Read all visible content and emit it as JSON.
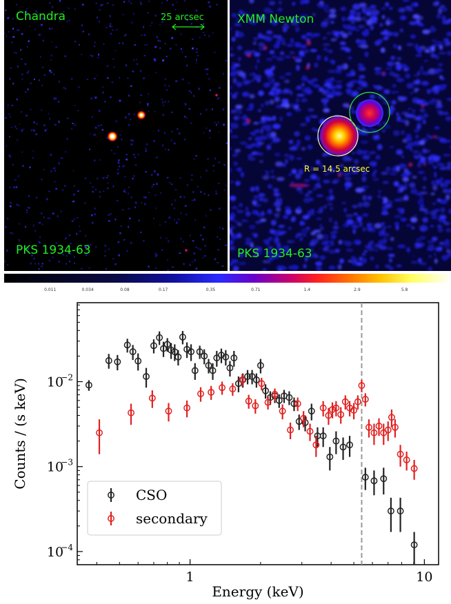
{
  "images": {
    "left": {
      "title": "Chandra",
      "source": "PKS 1934-63",
      "scale_label": "25 arcsec"
    },
    "right": {
      "title": "XMM Newton",
      "source": "PKS 1934-63",
      "radius_label": "R = 14.5 arcsec"
    },
    "colorbar_ticks": [
      "0.011",
      "0.034",
      "0.08",
      "0.17",
      "0.35",
      "0.71",
      "1.4",
      "2.9",
      "5.8"
    ],
    "colorbar_positions": [
      0.103,
      0.187,
      0.27,
      0.356,
      0.462,
      0.563,
      0.678,
      0.79,
      0.896
    ]
  },
  "chart_data": {
    "type": "scatter",
    "xlabel": "Energy (keV)",
    "ylabel": "Counts / (s keV)",
    "x_scale": "log",
    "y_scale": "log",
    "xlim": [
      0.33,
      11.5
    ],
    "ylim": [
      7e-05,
      0.085
    ],
    "x_ticks": [
      {
        "value": 1,
        "label": "1"
      },
      {
        "value": 10,
        "label": "10"
      }
    ],
    "y_ticks": [
      {
        "value": 0.0001,
        "label": "10",
        "exp": "−4"
      },
      {
        "value": 0.001,
        "label": "10",
        "exp": "−3"
      },
      {
        "value": 0.01,
        "label": "10",
        "exp": "−2"
      }
    ],
    "vline": {
      "x": 5.4,
      "style": "dashed",
      "color": "#999999"
    },
    "legend": {
      "position": "bottom-left",
      "entries": [
        "CSO",
        "secondary"
      ]
    },
    "series": [
      {
        "name": "CSO",
        "color": "#222222",
        "points": [
          [
            0.37,
            0.0091,
            0.0013
          ],
          [
            0.45,
            0.0177,
            0.0035
          ],
          [
            0.49,
            0.0171,
            0.0035
          ],
          [
            0.54,
            0.027,
            0.005
          ],
          [
            0.57,
            0.0225,
            0.0045
          ],
          [
            0.6,
            0.0175,
            0.004
          ],
          [
            0.65,
            0.0115,
            0.003
          ],
          [
            0.7,
            0.0265,
            0.005
          ],
          [
            0.74,
            0.033,
            0.006
          ],
          [
            0.77,
            0.0245,
            0.005
          ],
          [
            0.8,
            0.0275,
            0.005
          ],
          [
            0.83,
            0.0235,
            0.005
          ],
          [
            0.86,
            0.0225,
            0.005
          ],
          [
            0.89,
            0.0195,
            0.004
          ],
          [
            0.93,
            0.0335,
            0.006
          ],
          [
            0.97,
            0.024,
            0.005
          ],
          [
            1.01,
            0.0225,
            0.005
          ],
          [
            1.05,
            0.0135,
            0.003
          ],
          [
            1.1,
            0.0225,
            0.004
          ],
          [
            1.15,
            0.02,
            0.004
          ],
          [
            1.2,
            0.0155,
            0.003
          ],
          [
            1.25,
            0.0135,
            0.003
          ],
          [
            1.3,
            0.019,
            0.004
          ],
          [
            1.36,
            0.0205,
            0.004
          ],
          [
            1.42,
            0.0195,
            0.004
          ],
          [
            1.48,
            0.0145,
            0.003
          ],
          [
            1.54,
            0.019,
            0.004
          ],
          [
            1.61,
            0.0095,
            0.002
          ],
          [
            1.68,
            0.0105,
            0.002
          ],
          [
            1.76,
            0.0115,
            0.0022
          ],
          [
            1.84,
            0.0115,
            0.0022
          ],
          [
            1.92,
            0.0105,
            0.002
          ],
          [
            2.0,
            0.0155,
            0.003
          ],
          [
            2.1,
            0.0078,
            0.0015
          ],
          [
            2.2,
            0.0065,
            0.0012
          ],
          [
            2.3,
            0.0068,
            0.0012
          ],
          [
            2.4,
            0.006,
            0.0011
          ],
          [
            2.52,
            0.0068,
            0.0012
          ],
          [
            2.65,
            0.0065,
            0.0012
          ],
          [
            2.78,
            0.0055,
            0.001
          ],
          [
            2.92,
            0.0034,
            0.0007
          ],
          [
            3.1,
            0.0033,
            0.0007
          ],
          [
            3.3,
            0.0045,
            0.001
          ],
          [
            3.5,
            0.0023,
            0.0006
          ],
          [
            3.7,
            0.0023,
            0.0006
          ],
          [
            3.95,
            0.0013,
            0.0004
          ],
          [
            4.2,
            0.002,
            0.0006
          ],
          [
            4.5,
            0.0017,
            0.0005
          ],
          [
            4.8,
            0.0018,
            0.0005
          ],
          [
            5.6,
            0.00075,
            0.00022
          ],
          [
            6.1,
            0.00068,
            0.00022
          ],
          [
            6.7,
            0.00072,
            0.00025
          ],
          [
            7.2,
            0.0003,
            0.00013
          ],
          [
            7.9,
            0.0003,
            0.00013
          ],
          [
            9.05,
            0.00012,
            5e-05
          ]
        ]
      },
      {
        "name": "secondary",
        "color": "#e02020",
        "points": [
          [
            0.41,
            0.0025,
            0.0011
          ],
          [
            0.56,
            0.0043,
            0.0012
          ],
          [
            0.69,
            0.0064,
            0.0015
          ],
          [
            0.81,
            0.0045,
            0.0011
          ],
          [
            0.97,
            0.0049,
            0.0011
          ],
          [
            1.11,
            0.0072,
            0.0014
          ],
          [
            1.23,
            0.0075,
            0.0014
          ],
          [
            1.37,
            0.0085,
            0.0015
          ],
          [
            1.52,
            0.0082,
            0.0014
          ],
          [
            1.67,
            0.0105,
            0.0018
          ],
          [
            1.78,
            0.0059,
            0.0011
          ],
          [
            1.9,
            0.0052,
            0.001
          ],
          [
            2.02,
            0.0095,
            0.0016
          ],
          [
            2.15,
            0.0057,
            0.001
          ],
          [
            2.3,
            0.0071,
            0.0012
          ],
          [
            2.48,
            0.0045,
            0.0009
          ],
          [
            2.68,
            0.0027,
            0.0006
          ],
          [
            2.88,
            0.0055,
            0.001
          ],
          [
            3.05,
            0.0037,
            0.0008
          ],
          [
            3.25,
            0.0026,
            0.0006
          ],
          [
            3.45,
            0.0018,
            0.0005
          ],
          [
            3.7,
            0.0049,
            0.001
          ],
          [
            3.9,
            0.004,
            0.0009
          ],
          [
            4.05,
            0.0047,
            0.001
          ],
          [
            4.2,
            0.0049,
            0.001
          ],
          [
            4.4,
            0.0041,
            0.0009
          ],
          [
            4.6,
            0.0058,
            0.0011
          ],
          [
            4.8,
            0.0049,
            0.001
          ],
          [
            5.0,
            0.0046,
            0.001
          ],
          [
            5.2,
            0.0058,
            0.0011
          ],
          [
            5.4,
            0.009,
            0.0015
          ],
          [
            5.6,
            0.0062,
            0.0011
          ],
          [
            5.8,
            0.0029,
            0.0007
          ],
          [
            6.1,
            0.0025,
            0.0007
          ],
          [
            6.4,
            0.003,
            0.0007
          ],
          [
            6.7,
            0.0025,
            0.0007
          ],
          [
            7.0,
            0.0027,
            0.0007
          ],
          [
            7.25,
            0.0038,
            0.0009
          ],
          [
            7.5,
            0.0029,
            0.0007
          ],
          [
            7.9,
            0.0014,
            0.0004
          ],
          [
            8.4,
            0.0012,
            0.0003
          ],
          [
            9.05,
            0.00095,
            0.00025
          ]
        ]
      }
    ]
  }
}
